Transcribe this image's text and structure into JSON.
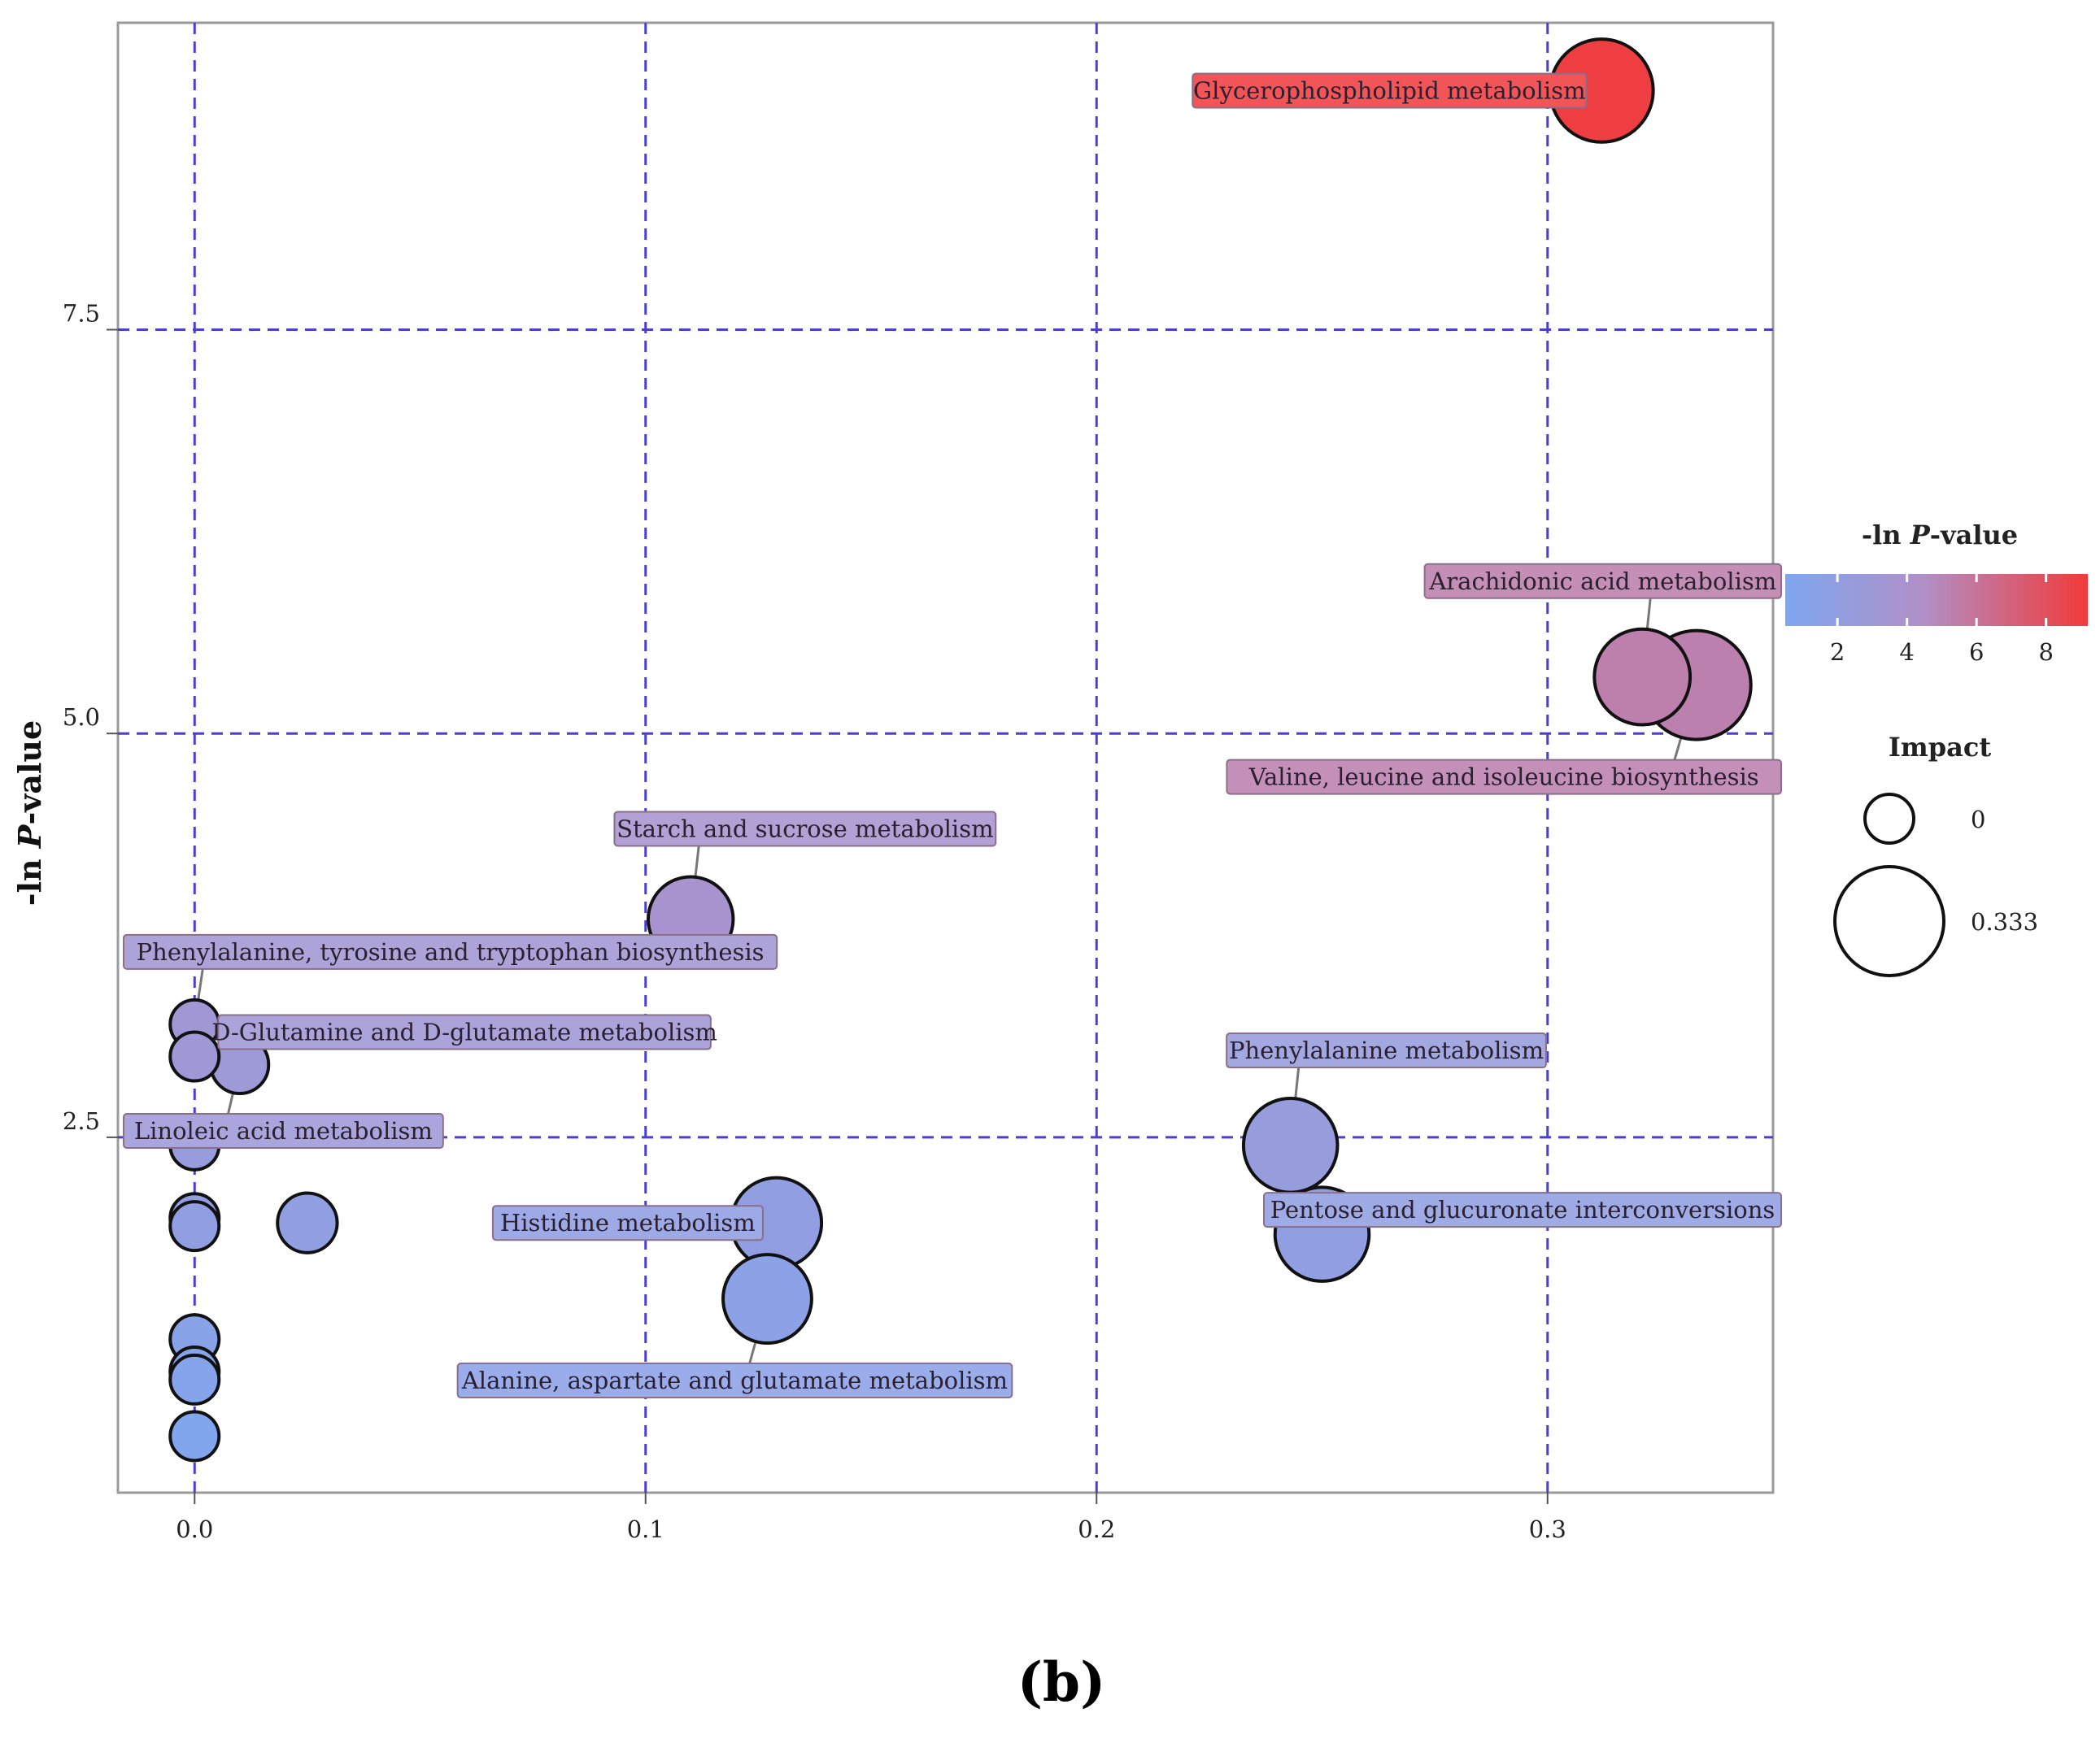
{
  "chart_data": {
    "type": "scatter",
    "xlabel": "",
    "ylabel": "-ln P-value",
    "ylabel_parts": [
      "-ln ",
      "P",
      "-value"
    ],
    "x_ticks": [
      0.0,
      0.1,
      0.2,
      0.3
    ],
    "x_tick_labels": [
      "0.0",
      "0.1",
      "0.2",
      "0.3"
    ],
    "y_ticks": [
      2.5,
      5.0,
      7.5
    ],
    "y_tick_labels": [
      "2.5",
      "5.0",
      "7.5"
    ],
    "xlim": [
      -0.017,
      0.35
    ],
    "ylim": [
      0.3,
      9.4
    ],
    "grid": true,
    "colorbar": {
      "title_parts": [
        "-ln ",
        "P",
        "-value"
      ],
      "ticks": [
        2,
        4,
        6,
        8
      ],
      "tick_labels": [
        "2",
        "4",
        "6",
        "8"
      ],
      "range": [
        0.5,
        9.2
      ],
      "low_color": "#7fa7f0",
      "mid_color": "#b090c8",
      "high_color": "#f23a3a"
    },
    "size_legend": {
      "title": "Impact",
      "entries": [
        {
          "value": 0,
          "label": "0"
        },
        {
          "value": 0.333,
          "label": "0.333"
        }
      ]
    },
    "points": [
      {
        "name": "Glycerophospholipid metabolism",
        "x": 0.312,
        "y": 8.98,
        "impact": 0.3,
        "label": "Glycerophospholipid metabolism",
        "label_pos": "left"
      },
      {
        "name": "Arachidonic acid metabolism",
        "x": 0.321,
        "y": 5.35,
        "impact": 0.26,
        "label": "Arachidonic acid metabolism",
        "label_pos": "above"
      },
      {
        "name": "Valine, leucine and isoleucine biosynthesis",
        "x": 0.333,
        "y": 5.3,
        "impact": 0.333,
        "label": "Valine, leucine and isoleucine biosynthesis",
        "label_pos": "below"
      },
      {
        "name": "Starch and sucrose metabolism",
        "x": 0.11,
        "y": 3.85,
        "impact": 0.2,
        "label": "Starch and sucrose metabolism",
        "label_pos": "above"
      },
      {
        "name": "Phenylalanine, tyrosine and tryptophan biosynthesis",
        "x": 0.0,
        "y": 3.2,
        "impact": 0.0,
        "label": "Phenylalanine, tyrosine and tryptophan biosynthesis",
        "label_pos": "above"
      },
      {
        "name": "D-Glutamine and D-glutamate metabolism",
        "x": 0.0,
        "y": 3.0,
        "impact": 0.0,
        "label": "D-Glutamine and D-glutamate metabolism",
        "label_pos": "right"
      },
      {
        "name": "Linoleic acid metabolism",
        "x": 0.01,
        "y": 2.95,
        "impact": 0.05,
        "label": "Linoleic acid metabolism",
        "label_pos": "below"
      },
      {
        "name": "",
        "x": 0.0,
        "y": 2.45,
        "impact": 0.0,
        "label": "",
        "label_pos": ""
      },
      {
        "name": "",
        "x": 0.0,
        "y": 2.0,
        "impact": 0.0,
        "label": "",
        "label_pos": ""
      },
      {
        "name": "",
        "x": 0.0,
        "y": 1.95,
        "impact": 0.0,
        "label": "",
        "label_pos": ""
      },
      {
        "name": "",
        "x": 0.025,
        "y": 1.97,
        "impact": 0.06,
        "label": "",
        "label_pos": ""
      },
      {
        "name": "Histidine metabolism",
        "x": 0.129,
        "y": 1.97,
        "impact": 0.23,
        "label": "Histidine metabolism",
        "label_pos": "left"
      },
      {
        "name": "Alanine, aspartate and glutamate metabolism",
        "x": 0.127,
        "y": 1.5,
        "impact": 0.22,
        "label": "Alanine, aspartate and glutamate metabolism",
        "label_pos": "below"
      },
      {
        "name": "Phenylalanine metabolism",
        "x": 0.243,
        "y": 2.45,
        "impact": 0.25,
        "label": "Phenylalanine metabolism",
        "label_pos": "above"
      },
      {
        "name": "Pentose and glucuronate interconversions",
        "x": 0.25,
        "y": 1.9,
        "impact": 0.25,
        "label": "Pentose and glucuronate interconversions",
        "label_pos": "right"
      },
      {
        "name": "",
        "x": 0.0,
        "y": 1.25,
        "impact": 0.0,
        "label": "",
        "label_pos": ""
      },
      {
        "name": "",
        "x": 0.0,
        "y": 1.05,
        "impact": 0.0,
        "label": "",
        "label_pos": ""
      },
      {
        "name": "",
        "x": 0.0,
        "y": 1.0,
        "impact": 0.0,
        "label": "",
        "label_pos": ""
      },
      {
        "name": "",
        "x": 0.0,
        "y": 0.65,
        "impact": 0.0,
        "label": "",
        "label_pos": ""
      }
    ]
  },
  "panel_label": "(b)"
}
